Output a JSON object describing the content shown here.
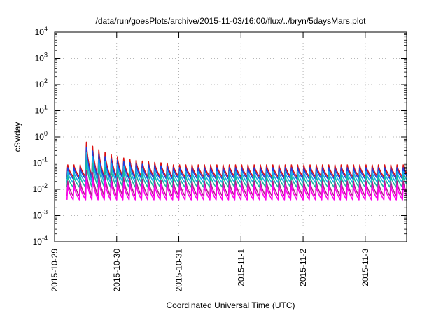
{
  "chart_data": {
    "type": "line",
    "title": "/data/run/goesPlots/archive/2015-11-03/16:00/flux/../bryn/5daysMars.plot",
    "xlabel": "Coordinated Universal Time (UTC)",
    "ylabel": "cSv/day",
    "yscale": "log",
    "ylim": [
      0.0001,
      10000
    ],
    "xlim": [
      "2015-10-29T00:00",
      "2015-11-03T16:00"
    ],
    "x_ticks": [
      "2015-10-29",
      "2015-10-30",
      "2015-10-31",
      "2015-11-1",
      "2015-11-2",
      "2015-11-3"
    ],
    "y_ticks": [
      {
        "base": "10",
        "exp": "-4"
      },
      {
        "base": "10",
        "exp": "-3"
      },
      {
        "base": "10",
        "exp": "-2"
      },
      {
        "base": "10",
        "exp": "-1"
      },
      {
        "base": "10",
        "exp": "0"
      },
      {
        "base": "10",
        "exp": "1"
      },
      {
        "base": "10",
        "exp": "2"
      },
      {
        "base": "10",
        "exp": "3"
      },
      {
        "base": "10",
        "exp": "4"
      }
    ],
    "grid": true,
    "reference_line": {
      "y": 0.1,
      "color": "#ff0000"
    },
    "pulse_period_hours": 2.4,
    "data_start": "2015-10-29T04:48",
    "series": [
      {
        "color": "#dd1111",
        "peak": 0.09,
        "trough": 0.03,
        "enhanced_peak": 0.8
      },
      {
        "color": "#1f3fe0",
        "peak": 0.07,
        "trough": 0.025,
        "enhanced_peak": 0.5
      },
      {
        "color": "#17b0e8",
        "peak": 0.05,
        "trough": 0.018,
        "enhanced_peak": 0.3
      },
      {
        "color": "#16b8a0",
        "peak": 0.035,
        "trough": 0.012,
        "enhanced_peak": 0.15
      },
      {
        "color": "#b0208a",
        "peak": 0.022,
        "trough": 0.0055,
        "enhanced_peak": 0.06
      },
      {
        "color": "#ff00ee",
        "peak": 0.015,
        "trough": 0.004,
        "enhanced_peak": 0.035
      }
    ]
  }
}
